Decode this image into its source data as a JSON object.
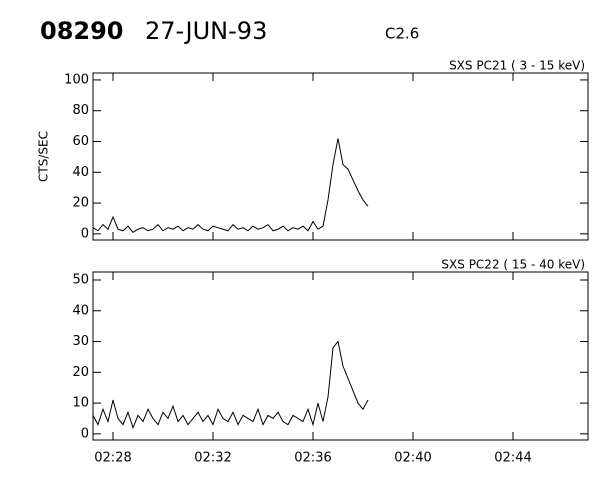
{
  "header": {
    "id": "08290",
    "date": "27-JUN-93",
    "class": "C2.6"
  },
  "chart_data": [
    {
      "type": "line",
      "title": "SXS PC21  (  3 - 15 keV)",
      "ylabel": "CTS/SEC",
      "xlim": [
        27.2,
        47.0
      ],
      "xticks": [
        28,
        32,
        36,
        40,
        44
      ],
      "ylim": [
        -4,
        104.5
      ],
      "yticks": [
        0,
        20,
        40,
        60,
        80,
        100
      ],
      "x": [
        27.2,
        27.4,
        27.6,
        27.8,
        28.0,
        28.2,
        28.4,
        28.6,
        28.8,
        29.0,
        29.2,
        29.4,
        29.6,
        29.8,
        30.0,
        30.2,
        30.4,
        30.6,
        30.8,
        31.0,
        31.2,
        31.4,
        31.6,
        31.8,
        32.0,
        32.2,
        32.4,
        32.6,
        32.8,
        33.0,
        33.2,
        33.4,
        33.6,
        33.8,
        34.0,
        34.2,
        34.4,
        34.6,
        34.8,
        35.0,
        35.2,
        35.4,
        35.6,
        35.8,
        36.0,
        36.2,
        36.4,
        36.6,
        36.8,
        37.0,
        37.2,
        37.4,
        37.6,
        37.8,
        38.0,
        38.2
      ],
      "series": [
        {
          "color": "#000000",
          "values": [
            4,
            2,
            6,
            3,
            11,
            3,
            2,
            5,
            1,
            3,
            4,
            2,
            3,
            6,
            2,
            4,
            3,
            5,
            2,
            4,
            3,
            6,
            3,
            2,
            5,
            4,
            3,
            2,
            6,
            3,
            4,
            2,
            5,
            3,
            4,
            6,
            2,
            3,
            5,
            2,
            4,
            3,
            5,
            2,
            8,
            3,
            5,
            22,
            45,
            62,
            45,
            42,
            35,
            28,
            22,
            18
          ]
        }
      ]
    },
    {
      "type": "line",
      "title": "SXS PC22  ( 15 - 40 keV)",
      "xlim": [
        27.2,
        47.0
      ],
      "xticks": [
        {
          "value": 28,
          "label": "02:28"
        },
        {
          "value": 32,
          "label": "02:32"
        },
        {
          "value": 36,
          "label": "02:36"
        },
        {
          "value": 40,
          "label": "02:40"
        },
        {
          "value": 44,
          "label": "02:44"
        }
      ],
      "ylim": [
        -2,
        52.6
      ],
      "yticks": [
        0,
        10,
        20,
        30,
        40,
        50
      ],
      "x": [
        27.2,
        27.4,
        27.6,
        27.8,
        28.0,
        28.2,
        28.4,
        28.6,
        28.8,
        29.0,
        29.2,
        29.4,
        29.6,
        29.8,
        30.0,
        30.2,
        30.4,
        30.6,
        30.8,
        31.0,
        31.2,
        31.4,
        31.6,
        31.8,
        32.0,
        32.2,
        32.4,
        32.6,
        32.8,
        33.0,
        33.2,
        33.4,
        33.6,
        33.8,
        34.0,
        34.2,
        34.4,
        34.6,
        34.8,
        35.0,
        35.2,
        35.4,
        35.6,
        35.8,
        36.0,
        36.2,
        36.4,
        36.6,
        36.8,
        37.0,
        37.2,
        37.4,
        37.6,
        37.8,
        38.0,
        38.2
      ],
      "series": [
        {
          "color": "#000000",
          "values": [
            6,
            3,
            8,
            4,
            11,
            5,
            3,
            7,
            2,
            6,
            4,
            8,
            5,
            3,
            7,
            5,
            9,
            4,
            6,
            3,
            5,
            7,
            4,
            6,
            3,
            8,
            5,
            4,
            7,
            3,
            6,
            5,
            4,
            8,
            3,
            6,
            5,
            7,
            4,
            3,
            6,
            5,
            4,
            8,
            3,
            10,
            4,
            12,
            28,
            30,
            22,
            18,
            14,
            10,
            8,
            11
          ]
        }
      ]
    }
  ]
}
